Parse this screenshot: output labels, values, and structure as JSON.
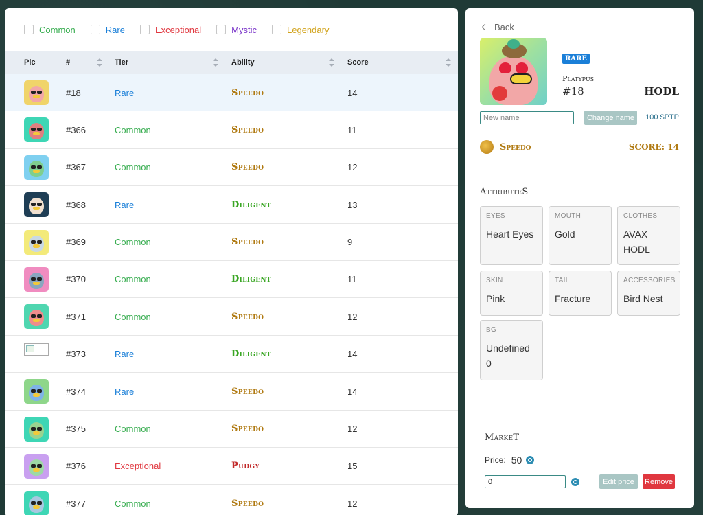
{
  "filters": [
    {
      "label": "Common",
      "color": "#3aae52"
    },
    {
      "label": "Rare",
      "color": "#1a7fd8"
    },
    {
      "label": "Exceptional",
      "color": "#e0373f"
    },
    {
      "label": "Mystic",
      "color": "#7a35c9"
    },
    {
      "label": "Legendary",
      "color": "#d1a21a"
    }
  ],
  "table": {
    "headers": {
      "pic": "Pic",
      "num": "#",
      "tier": "Tier",
      "ability": "Ability",
      "score": "Score"
    },
    "rows": [
      {
        "num": "#18",
        "tier": "Rare",
        "ability": "Speedo",
        "score": "14",
        "selected": true,
        "bg": "#f0d46a",
        "face": "#f2a7a7"
      },
      {
        "num": "#366",
        "tier": "Common",
        "ability": "Speedo",
        "score": "11",
        "bg": "#3ed6b5",
        "face": "#e07f7f"
      },
      {
        "num": "#367",
        "tier": "Common",
        "ability": "Speedo",
        "score": "12",
        "bg": "#7fd0f0",
        "face": "#7fcf8f"
      },
      {
        "num": "#368",
        "tier": "Rare",
        "ability": "Diligent",
        "score": "13",
        "bg": "#1f3e55",
        "face": "#f0e0d0"
      },
      {
        "num": "#369",
        "tier": "Common",
        "ability": "Speedo",
        "score": "9",
        "bg": "#f3ea7a",
        "face": "#c9d9e4"
      },
      {
        "num": "#370",
        "tier": "Common",
        "ability": "Diligent",
        "score": "11",
        "bg": "#f08cc0",
        "face": "#8aa6bf"
      },
      {
        "num": "#371",
        "tier": "Common",
        "ability": "Speedo",
        "score": "12",
        "bg": "#4fd6b0",
        "face": "#ef8c8c"
      },
      {
        "num": "#373",
        "tier": "Rare",
        "ability": "Diligent",
        "score": "14",
        "broken": true
      },
      {
        "num": "#374",
        "tier": "Rare",
        "ability": "Speedo",
        "score": "14",
        "bg": "#8ed68a",
        "face": "#7fb3e6"
      },
      {
        "num": "#375",
        "tier": "Common",
        "ability": "Speedo",
        "score": "12",
        "bg": "#3ed6b5",
        "face": "#9ad38f"
      },
      {
        "num": "#376",
        "tier": "Exceptional",
        "ability": "Pudgy",
        "score": "15",
        "bg": "#c9a0f0",
        "face": "#9dd9a5"
      },
      {
        "num": "#377",
        "tier": "Common",
        "ability": "Speedo",
        "score": "12",
        "bg": "#3ed6b5",
        "face": "#a8c8e0"
      }
    ]
  },
  "detail": {
    "back_label": "Back",
    "badge": "RARE",
    "species": "Platypus",
    "number": "#18",
    "nickname": "HODL",
    "name_placeholder": "New name",
    "change_name_label": "Change name",
    "change_cost": "100 $PTP",
    "ability": "Speedo",
    "score_label": "SCORE: 14",
    "attributes_title": "AttributeS",
    "attributes": [
      {
        "label": "EYES",
        "value": "Heart Eyes"
      },
      {
        "label": "MOUTH",
        "value": "Gold"
      },
      {
        "label": "CLOTHES",
        "value": "AVAX HODL"
      },
      {
        "label": "SKIN",
        "value": "Pink"
      },
      {
        "label": "TAIL",
        "value": "Fracture"
      },
      {
        "label": "ACCESSORIES",
        "value": "Bird Nest"
      },
      {
        "label": "BG",
        "value": "Undefined 0"
      }
    ],
    "market_title": "MarkeT",
    "price_label": "Price:",
    "price_value": "50",
    "price_input_value": "0",
    "edit_price_label": "Edit price",
    "remove_label": "Remove"
  }
}
